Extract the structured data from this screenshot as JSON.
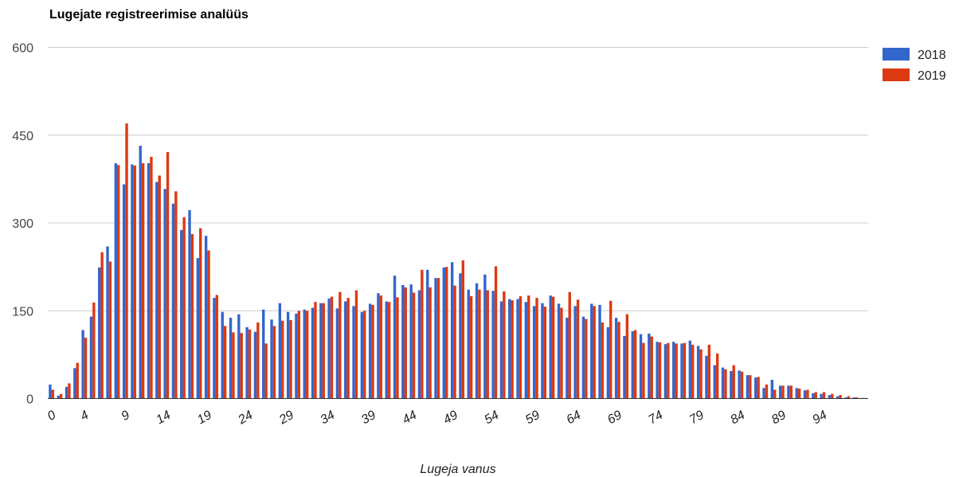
{
  "chart_data": {
    "type": "bar",
    "title": "Lugejate registreerimise analüüs",
    "xlabel": "Lugeja vanus",
    "ylabel": "",
    "ylim": [
      0,
      600
    ],
    "yticks": [
      0,
      150,
      300,
      450,
      600
    ],
    "xtick_labels": [
      "0",
      "4",
      "9",
      "14",
      "19",
      "24",
      "29",
      "34",
      "39",
      "44",
      "49",
      "54",
      "59",
      "64",
      "69",
      "74",
      "79",
      "84",
      "89",
      "94"
    ],
    "grid": true,
    "legend_position": "right",
    "x": [
      0,
      1,
      2,
      3,
      4,
      5,
      6,
      7,
      8,
      9,
      10,
      11,
      12,
      13,
      14,
      15,
      16,
      17,
      18,
      19,
      20,
      21,
      22,
      23,
      24,
      25,
      26,
      27,
      28,
      29,
      30,
      31,
      32,
      33,
      34,
      35,
      36,
      37,
      38,
      39,
      40,
      41,
      42,
      43,
      44,
      45,
      46,
      47,
      48,
      49,
      50,
      51,
      52,
      53,
      54,
      55,
      56,
      57,
      58,
      59,
      60,
      61,
      62,
      63,
      64,
      65,
      66,
      67,
      68,
      69,
      70,
      71,
      72,
      73,
      74,
      75,
      76,
      77,
      78,
      79,
      80,
      81,
      82,
      83,
      84,
      85,
      86,
      87,
      88,
      89,
      90,
      91,
      92,
      93,
      94,
      95,
      96,
      97,
      98,
      99
    ],
    "series": [
      {
        "name": "2018",
        "color": "#3366cc",
        "values": [
          24,
          5,
          20,
          52,
          117,
          140,
          224,
          260,
          402,
          366,
          400,
          432,
          402,
          370,
          358,
          333,
          288,
          322,
          240,
          278,
          172,
          148,
          138,
          144,
          122,
          114,
          152,
          135,
          163,
          148,
          145,
          152,
          155,
          163,
          171,
          154,
          166,
          158,
          148,
          162,
          180,
          166,
          210,
          194,
          195,
          185,
          220,
          206,
          224,
          233,
          214,
          186,
          197,
          212,
          184,
          166,
          170,
          170,
          165,
          158,
          163,
          176,
          162,
          138,
          158,
          140,
          162,
          160,
          122,
          138,
          107,
          115,
          110,
          111,
          97,
          93,
          97,
          94,
          99,
          90,
          73,
          57,
          53,
          47,
          48,
          40,
          36,
          18,
          32,
          22,
          22,
          18,
          14,
          9,
          8,
          6,
          4,
          2,
          2,
          1
        ],
        "ylim": [
          0,
          600
        ]
      },
      {
        "name": "2019",
        "color": "#dc3912",
        "values": [
          15,
          8,
          26,
          61,
          104,
          164,
          250,
          234,
          399,
          470,
          398,
          402,
          413,
          381,
          421,
          354,
          310,
          281,
          291,
          253,
          177,
          124,
          113,
          112,
          118,
          130,
          94,
          124,
          133,
          134,
          150,
          150,
          165,
          163,
          174,
          182,
          172,
          185,
          150,
          160,
          176,
          165,
          173,
          190,
          181,
          220,
          190,
          206,
          225,
          193,
          236,
          175,
          186,
          185,
          226,
          183,
          168,
          175,
          176,
          172,
          157,
          174,
          155,
          182,
          169,
          136,
          158,
          130,
          167,
          131,
          144,
          117,
          95,
          106,
          96,
          95,
          94,
          95,
          92,
          84,
          92,
          77,
          50,
          57,
          46,
          40,
          37,
          24,
          15,
          22,
          22,
          17,
          15,
          11,
          11,
          8,
          6,
          4,
          2,
          1
        ],
        "ylim": [
          0,
          600
        ]
      }
    ]
  }
}
